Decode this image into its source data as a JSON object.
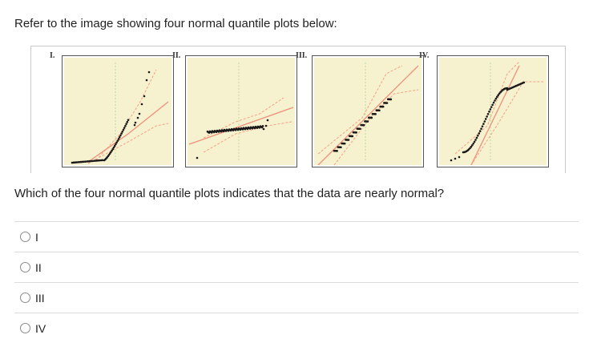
{
  "prompt": "Refer to the image showing four normal quantile plots below:",
  "figure": {
    "panels": [
      {
        "label": "I."
      },
      {
        "label": "II."
      },
      {
        "label": "III."
      },
      {
        "label": "IV."
      }
    ]
  },
  "question": "Which of the four normal quantile plots indicates that the data are nearly normal?",
  "options": [
    {
      "label": "I"
    },
    {
      "label": "II"
    },
    {
      "label": "III"
    },
    {
      "label": "IV"
    }
  ],
  "colors": {
    "panel_bg": "#f6f1cf",
    "fit_line": "#f08f7a",
    "band": "#f5a184",
    "centerline": "#b8df9a",
    "points": "#1a1a1a"
  }
}
